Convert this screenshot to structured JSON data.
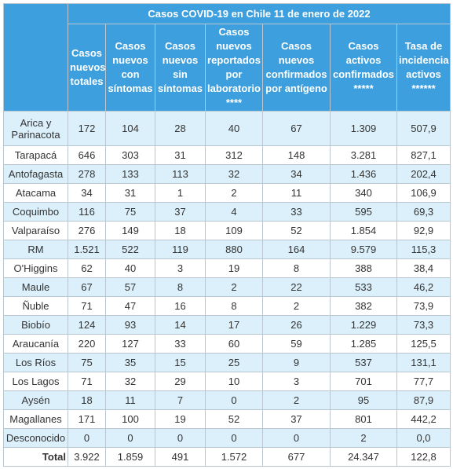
{
  "table": {
    "title": "Casos COVID-19 en Chile 11 de enero de 2022",
    "columns": [
      "Casos nuevos totales",
      "Casos nuevos con síntomas",
      "Casos nuevos sin síntomas",
      "Casos nuevos reportados por laboratorio ****",
      "Casos nuevos confirmados por antígeno",
      "Casos activos confirmados *****",
      "Tasa de incidencia activos ******"
    ],
    "rows": [
      [
        "Arica y Parinacota",
        "172",
        "104",
        "28",
        "40",
        "67",
        "1.309",
        "507,9"
      ],
      [
        "Tarapacá",
        "646",
        "303",
        "31",
        "312",
        "148",
        "3.281",
        "827,1"
      ],
      [
        "Antofagasta",
        "278",
        "133",
        "113",
        "32",
        "34",
        "1.436",
        "202,4"
      ],
      [
        "Atacama",
        "34",
        "31",
        "1",
        "2",
        "11",
        "340",
        "106,9"
      ],
      [
        "Coquimbo",
        "116",
        "75",
        "37",
        "4",
        "33",
        "595",
        "69,3"
      ],
      [
        "Valparaíso",
        "276",
        "149",
        "18",
        "109",
        "52",
        "1.854",
        "92,9"
      ],
      [
        "RM",
        "1.521",
        "522",
        "119",
        "880",
        "164",
        "9.579",
        "115,3"
      ],
      [
        "O'Higgins",
        "62",
        "40",
        "3",
        "19",
        "8",
        "388",
        "38,4"
      ],
      [
        "Maule",
        "67",
        "57",
        "8",
        "2",
        "22",
        "533",
        "46,2"
      ],
      [
        "Ñuble",
        "71",
        "47",
        "16",
        "8",
        "2",
        "382",
        "73,9"
      ],
      [
        "Biobío",
        "124",
        "93",
        "14",
        "17",
        "26",
        "1.229",
        "73,3"
      ],
      [
        "Araucanía",
        "220",
        "127",
        "33",
        "60",
        "59",
        "1.285",
        "125,5"
      ],
      [
        "Los Ríos",
        "75",
        "35",
        "15",
        "25",
        "9",
        "537",
        "131,1"
      ],
      [
        "Los Lagos",
        "71",
        "32",
        "29",
        "10",
        "3",
        "701",
        "77,7"
      ],
      [
        "Aysén",
        "18",
        "11",
        "7",
        "0",
        "2",
        "95",
        "87,9"
      ],
      [
        "Magallanes",
        "171",
        "100",
        "19",
        "52",
        "37",
        "801",
        "442,2"
      ],
      [
        "Desconocido",
        "0",
        "0",
        "0",
        "0",
        "0",
        "2",
        "0,0"
      ]
    ],
    "total": [
      "Total",
      "3.922",
      "1.859",
      "491",
      "1.572",
      "677",
      "24.347",
      "122,8"
    ]
  }
}
